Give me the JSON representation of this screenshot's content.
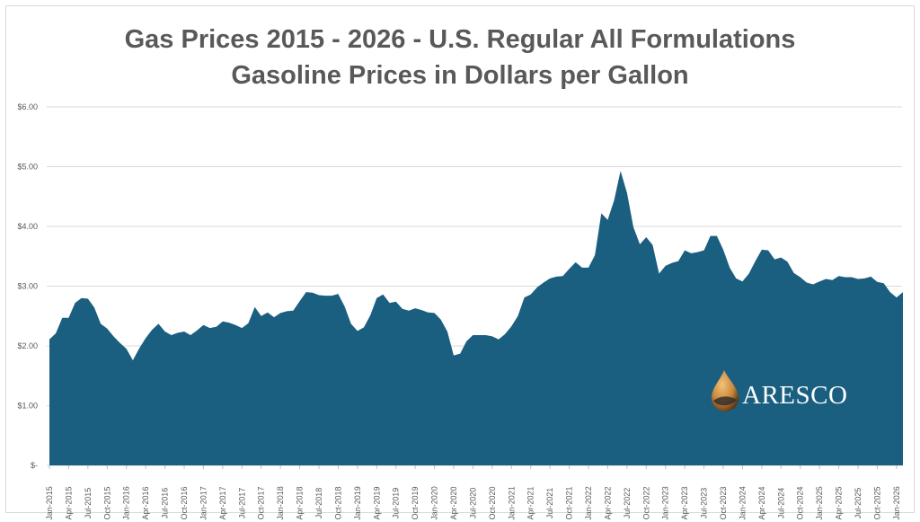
{
  "chart_data": {
    "type": "area",
    "title": "Gas Prices 2015 - 2026 - U.S. Regular All Formulations",
    "subtitle": "Gasoline Prices in Dollars per Gallon",
    "xlabel": "",
    "ylabel": "",
    "ylim": [
      0,
      6
    ],
    "y_ticks": [
      "$-",
      "$1.00",
      "$2.00",
      "$3.00",
      "$4.00",
      "$5.00",
      "$6.00"
    ],
    "grid": true,
    "legend": "none",
    "color": "#1a5e80",
    "start": "Jan-2015",
    "x_tick_labels": [
      "Jan-2015",
      "Apr-2015",
      "Jul-2015",
      "Oct-2015",
      "Jan-2016",
      "Apr-2016",
      "Jul-2016",
      "Oct-2016",
      "Jan-2017",
      "Apr-2017",
      "Jul-2017",
      "Oct-2017",
      "Jan-2018",
      "Apr-2018",
      "Jul-2018",
      "Oct-2018",
      "Jan-2019",
      "Apr-2019",
      "Jul-2019",
      "Oct-2019",
      "Jan-2020",
      "Apr-2020",
      "Jul-2020",
      "Oct-2020",
      "Jan-2021",
      "Apr-2021",
      "Jul-2021",
      "Oct-2021",
      "Jan-2022",
      "Apr-2022",
      "Jul-2022",
      "Oct-2022",
      "Jan-2023",
      "Apr-2023",
      "Jul-2023",
      "Oct-2023",
      "Jan-2024",
      "Apr-2024",
      "Jul-2024",
      "Oct-2024",
      "Jan-2025",
      "Apr-2025",
      "Jul-2025",
      "Oct-2025",
      "Jan-2026"
    ],
    "values": [
      2.11,
      2.21,
      2.47,
      2.47,
      2.72,
      2.8,
      2.79,
      2.64,
      2.37,
      2.29,
      2.16,
      2.05,
      1.95,
      1.76,
      1.96,
      2.13,
      2.27,
      2.37,
      2.24,
      2.18,
      2.22,
      2.24,
      2.18,
      2.26,
      2.35,
      2.3,
      2.32,
      2.41,
      2.39,
      2.35,
      2.3,
      2.38,
      2.65,
      2.5,
      2.56,
      2.48,
      2.55,
      2.58,
      2.59,
      2.75,
      2.9,
      2.89,
      2.85,
      2.84,
      2.84,
      2.87,
      2.66,
      2.37,
      2.25,
      2.31,
      2.51,
      2.8,
      2.86,
      2.72,
      2.74,
      2.62,
      2.59,
      2.63,
      2.6,
      2.56,
      2.55,
      2.44,
      2.24,
      1.84,
      1.87,
      2.08,
      2.18,
      2.18,
      2.18,
      2.16,
      2.11,
      2.2,
      2.33,
      2.5,
      2.81,
      2.86,
      2.98,
      3.06,
      3.13,
      3.16,
      3.17,
      3.29,
      3.4,
      3.31,
      3.31,
      3.52,
      4.22,
      4.11,
      4.44,
      4.93,
      4.56,
      3.99,
      3.7,
      3.82,
      3.69,
      3.21,
      3.34,
      3.39,
      3.42,
      3.6,
      3.55,
      3.57,
      3.6,
      3.84,
      3.84,
      3.61,
      3.31,
      3.13,
      3.08,
      3.21,
      3.42,
      3.61,
      3.6,
      3.45,
      3.48,
      3.41,
      3.22,
      3.15,
      3.06,
      3.03,
      3.08,
      3.12,
      3.1,
      3.17,
      3.15,
      3.15,
      3.12,
      3.13,
      3.16,
      3.07,
      3.05,
      2.9,
      2.81,
      2.9
    ]
  },
  "logo": {
    "text": "ARESCO"
  }
}
